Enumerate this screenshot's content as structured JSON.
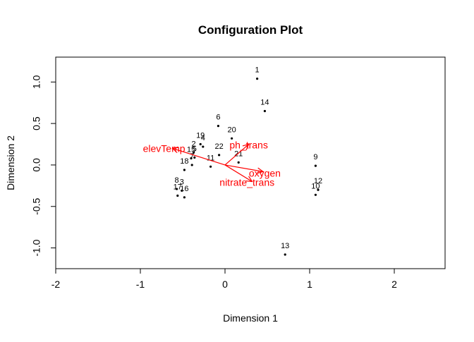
{
  "chart_data": {
    "type": "scatter",
    "title": "Configuration Plot",
    "xlabel": "Dimension 1",
    "ylabel": "Dimension 2",
    "xlim": [
      -2,
      2.6
    ],
    "ylim": [
      -1.25,
      1.3
    ],
    "x_ticks": [
      -2,
      -1,
      0,
      1,
      2
    ],
    "x_tick_labels": [
      "-2",
      "-1",
      "0",
      "1",
      "2"
    ],
    "y_ticks": [
      -1.0,
      -0.5,
      0.0,
      0.5,
      1.0
    ],
    "y_tick_labels": [
      "-1.0",
      "-0.5",
      "0.0",
      "0.5",
      "1.0"
    ],
    "grid": false,
    "points": [
      {
        "label": "1",
        "x": 0.38,
        "y": 1.04
      },
      {
        "label": "14",
        "x": 0.47,
        "y": 0.65
      },
      {
        "label": "6",
        "x": -0.08,
        "y": 0.47
      },
      {
        "label": "20",
        "x": 0.08,
        "y": 0.32
      },
      {
        "label": "19",
        "x": -0.29,
        "y": 0.25
      },
      {
        "label": "4",
        "x": -0.26,
        "y": 0.22
      },
      {
        "label": "22",
        "x": -0.07,
        "y": 0.12
      },
      {
        "label": "2",
        "x": -0.37,
        "y": 0.15
      },
      {
        "label": "15",
        "x": -0.4,
        "y": 0.08
      },
      {
        "label": "5",
        "x": -0.36,
        "y": 0.09
      },
      {
        "label": "11",
        "x": -0.17,
        "y": -0.02
      },
      {
        "label": "21",
        "x": 0.16,
        "y": 0.03
      },
      {
        "label": "7",
        "x": -0.39,
        "y": 0.0
      },
      {
        "label": "18",
        "x": -0.48,
        "y": -0.06
      },
      {
        "label": "9",
        "x": 1.07,
        "y": -0.01
      },
      {
        "label": "8",
        "x": -0.57,
        "y": -0.29
      },
      {
        "label": "3",
        "x": -0.51,
        "y": -0.31
      },
      {
        "label": "17",
        "x": -0.56,
        "y": -0.37
      },
      {
        "label": "16",
        "x": -0.48,
        "y": -0.39
      },
      {
        "label": "12",
        "x": 1.1,
        "y": -0.3
      },
      {
        "label": "10",
        "x": 1.07,
        "y": -0.36
      },
      {
        "label": "13",
        "x": 0.71,
        "y": -1.08
      }
    ],
    "vectors": [
      {
        "label": "elevTemp",
        "x": -0.62,
        "y": 0.2,
        "label_x": -0.72,
        "label_y": 0.2
      },
      {
        "label": "ph_trans",
        "x": 0.28,
        "y": 0.25,
        "label_x": 0.28,
        "label_y": 0.24
      },
      {
        "label": "oxygen",
        "x": 0.45,
        "y": -0.08,
        "label_x": 0.47,
        "label_y": -0.1
      },
      {
        "label": "nitrate_trans",
        "x": 0.32,
        "y": -0.2,
        "label_x": 0.26,
        "label_y": -0.21
      }
    ],
    "vector_color": "#ff0000",
    "point_color": "#000000"
  }
}
